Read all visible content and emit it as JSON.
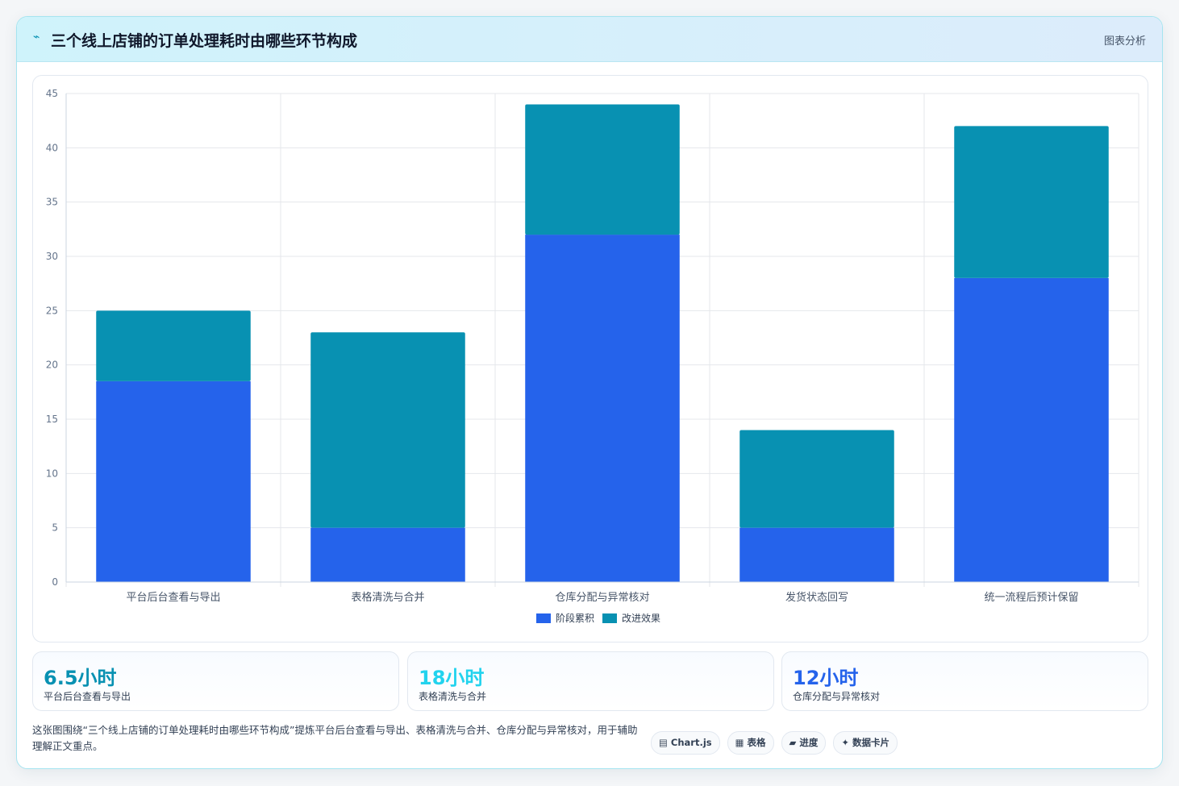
{
  "header": {
    "icon": "chart-icon",
    "title": "三个线上店铺的订单处理耗时由哪些环节构成",
    "tag": "图表分析"
  },
  "chart_data": {
    "type": "bar",
    "stacked": true,
    "categories": [
      "平台后台查看与导出",
      "表格清洗与合并",
      "仓库分配与异常核对",
      "发货状态回写",
      "统一流程后预计保留"
    ],
    "series": [
      {
        "name": "阶段累积",
        "color": "#2563eb",
        "values": [
          18.5,
          5,
          32,
          5,
          28
        ]
      },
      {
        "name": "改进效果",
        "color": "#0891b2",
        "values": [
          6.5,
          18,
          12,
          9,
          14
        ]
      }
    ],
    "ylim": [
      0,
      45
    ],
    "yticks": [
      0,
      5,
      10,
      15,
      20,
      25,
      30,
      35,
      40,
      45
    ],
    "grid": true,
    "legend": "bottom"
  },
  "stats": [
    {
      "value": "6.5小时",
      "label": "平台后台查看与导出",
      "color": "#0891b2"
    },
    {
      "value": "18小时",
      "label": "表格清洗与合并",
      "color": "#22d3ee"
    },
    {
      "value": "12小时",
      "label": "仓库分配与异常核对",
      "color": "#2563eb"
    }
  ],
  "summary": "这张图围绕“三个线上店铺的订单处理耗时由哪些环节构成”提炼平台后台查看与导出、表格清洗与合并、仓库分配与异常核对，用于辅助理解正文重点。",
  "chips": [
    {
      "icon": "▤",
      "label": "Chart.js"
    },
    {
      "icon": "▦",
      "label": "表格"
    },
    {
      "icon": "▰",
      "label": "进度"
    },
    {
      "icon": "✦",
      "label": "数据卡片"
    }
  ]
}
